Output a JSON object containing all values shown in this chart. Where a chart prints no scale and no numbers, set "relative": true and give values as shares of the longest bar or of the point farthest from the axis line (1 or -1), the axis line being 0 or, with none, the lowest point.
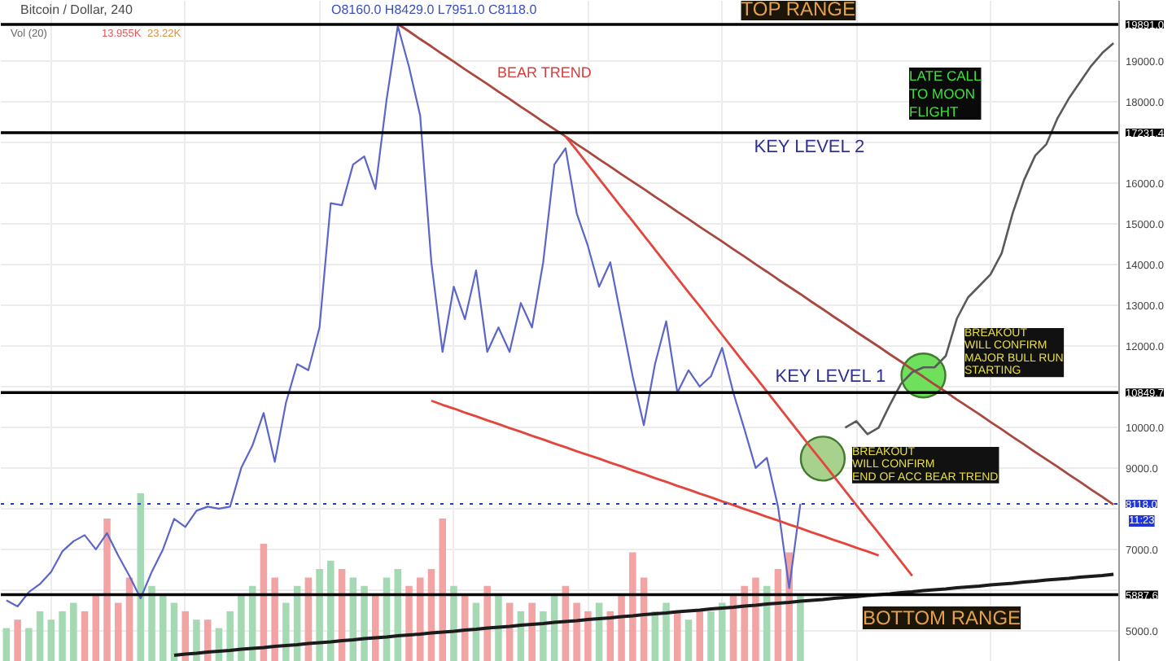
{
  "chart_data": [
    {
      "type": "line",
      "title": "Bitcoin / Dollar, 240",
      "categories": [
        null,
        null,
        null,
        null,
        null,
        null,
        null,
        null,
        null,
        null,
        null,
        null,
        null,
        null,
        null,
        null,
        null,
        null,
        null,
        null,
        null,
        null,
        null,
        null,
        null,
        null,
        null,
        null,
        null,
        null,
        null,
        null,
        null,
        null,
        null,
        null,
        null,
        null,
        null,
        null,
        null,
        null,
        null,
        null,
        null,
        null,
        null,
        null,
        null,
        null,
        null,
        null,
        null,
        null,
        null,
        null,
        null,
        null,
        null,
        null,
        null,
        null,
        null,
        null,
        null,
        null,
        null,
        null,
        null,
        null,
        null,
        null,
        null,
        null,
        null,
        null,
        null,
        null,
        null,
        null,
        null,
        null,
        null,
        null,
        null,
        null,
        null,
        null,
        null,
        null,
        null,
        null,
        null,
        null,
        null,
        null,
        null,
        null,
        null,
        null
      ],
      "series": [
        {
          "color": "#5b66c8",
          "values": [
            5750,
            5600,
            5950,
            6150,
            6450,
            6950,
            7200,
            7350,
            7000,
            7400,
            6850,
            6350,
            5800,
            6450,
            7000,
            7750,
            7550,
            7950,
            8050,
            8000,
            8050,
            9000,
            9550,
            10350,
            9150,
            10600,
            11550,
            11400,
            12450,
            15500,
            15450,
            16450,
            16650,
            15850,
            18050,
            19850,
            18850,
            17650,
            14050,
            11850,
            13450,
            12650,
            13850,
            11850,
            12450,
            11850,
            13050,
            12450,
            14050,
            16450,
            16850,
            15250,
            14450,
            13450,
            14050,
            12650,
            11250,
            10050,
            11550,
            12600,
            10850,
            11400,
            11000,
            11250,
            11950,
            10850,
            9950,
            9000,
            9250,
            8050,
            6050,
            8120,
            null,
            null,
            null,
            null,
            null,
            null,
            null,
            null,
            null,
            null,
            null,
            null,
            null,
            null,
            null,
            null,
            null,
            null,
            null,
            null,
            null,
            null,
            null,
            null,
            null,
            null,
            null,
            null
          ]
        },
        {
          "type": "line",
          "color": "#a8483f",
          "values": [
            null,
            null,
            null,
            null,
            null,
            null,
            null,
            null,
            null,
            null,
            null,
            null,
            null,
            null,
            null,
            null,
            null,
            null,
            null,
            null,
            null,
            null,
            null,
            null,
            null,
            null,
            null,
            null,
            null,
            null,
            null,
            null,
            null,
            null,
            null,
            19900,
            19720,
            19530,
            19350,
            19160,
            18980,
            18790,
            18610,
            18430,
            18240,
            18060,
            17870,
            17690,
            17500,
            17320,
            17140,
            16950,
            16770,
            16580,
            16400,
            16210,
            16030,
            15850,
            15660,
            15480,
            15290,
            15110,
            14920,
            14740,
            14560,
            14370,
            14190,
            14000,
            13820,
            13630,
            13450,
            13270,
            13080,
            12900,
            12710,
            12530,
            12340,
            12160,
            11980,
            11790,
            11610,
            11420,
            11240,
            11050,
            10870,
            10680,
            10500,
            10320,
            10130,
            9950,
            9760,
            9580,
            9390,
            9210,
            9030,
            8840,
            8660,
            8470,
            8290,
            8100
          ]
        },
        {
          "type": "line",
          "color": "#e2463c",
          "values": [
            null,
            null,
            null,
            null,
            null,
            null,
            null,
            null,
            null,
            null,
            null,
            null,
            null,
            null,
            null,
            null,
            null,
            null,
            null,
            null,
            null,
            null,
            null,
            null,
            null,
            null,
            null,
            null,
            null,
            null,
            null,
            null,
            null,
            null,
            null,
            null,
            null,
            null,
            null,
            null,
            null,
            null,
            null,
            null,
            null,
            null,
            null,
            null,
            null,
            null,
            17140,
            16800,
            16450,
            16100,
            15750,
            15400,
            15060,
            14710,
            14360,
            14010,
            13660,
            13310,
            12970,
            12620,
            12270,
            11920,
            11570,
            11230,
            10880,
            10530,
            10180,
            9830,
            9480,
            9140,
            8790,
            8440,
            8090,
            7740,
            7400,
            7050,
            6700,
            6350,
            null,
            null,
            null,
            null,
            null,
            null,
            null,
            null,
            null,
            null,
            null,
            null,
            null,
            null,
            null,
            null,
            null,
            null
          ]
        },
        {
          "type": "line",
          "color": "#e2463c",
          "values": [
            null,
            null,
            null,
            null,
            null,
            null,
            null,
            null,
            null,
            null,
            null,
            null,
            null,
            null,
            null,
            null,
            null,
            null,
            null,
            null,
            null,
            null,
            null,
            null,
            null,
            null,
            null,
            null,
            null,
            null,
            null,
            null,
            null,
            null,
            null,
            null,
            null,
            null,
            10650,
            10550,
            10460,
            10360,
            10270,
            10170,
            10080,
            9980,
            9890,
            9790,
            9700,
            9600,
            9510,
            9410,
            9320,
            9230,
            9130,
            9040,
            8940,
            8850,
            8750,
            8660,
            8560,
            8470,
            8370,
            8280,
            8180,
            8090,
            7990,
            7900,
            7800,
            7710,
            7610,
            7520,
            7420,
            7330,
            7230,
            7140,
            7040,
            6950,
            6850,
            null,
            null,
            null,
            null,
            null,
            null,
            null,
            null,
            null,
            null,
            null,
            null,
            null,
            null,
            null,
            null,
            null,
            null,
            null,
            null,
            null
          ]
        },
        {
          "type": "line",
          "color": "#1b1b1b",
          "values": [
            null,
            null,
            null,
            null,
            null,
            null,
            null,
            null,
            null,
            null,
            null,
            null,
            null,
            null,
            null,
            4400,
            4430,
            4450,
            4480,
            4500,
            4520,
            4550,
            4570,
            4590,
            4620,
            4640,
            4660,
            4690,
            4710,
            4730,
            4760,
            4780,
            4810,
            4830,
            4850,
            4880,
            4900,
            4920,
            4950,
            4970,
            4990,
            5020,
            5040,
            5070,
            5090,
            5110,
            5140,
            5160,
            5180,
            5210,
            5230,
            5250,
            5280,
            5300,
            5320,
            5350,
            5370,
            5400,
            5420,
            5440,
            5470,
            5490,
            5510,
            5540,
            5560,
            5580,
            5610,
            5630,
            5660,
            5680,
            5700,
            5730,
            5750,
            5770,
            5800,
            5820,
            5840,
            5870,
            5890,
            5910,
            5940,
            5960,
            5990,
            6010,
            6030,
            6060,
            6080,
            6100,
            6130,
            6150,
            6170,
            6200,
            6220,
            6250,
            6270,
            6290,
            6320,
            6340,
            6360,
            6390
          ]
        },
        {
          "type": "line",
          "color": "#5a5a5a",
          "values": [
            null,
            null,
            null,
            null,
            null,
            null,
            null,
            null,
            null,
            null,
            null,
            null,
            null,
            null,
            null,
            null,
            null,
            null,
            null,
            null,
            null,
            null,
            null,
            null,
            null,
            null,
            null,
            null,
            null,
            null,
            null,
            null,
            null,
            null,
            null,
            null,
            null,
            null,
            null,
            null,
            null,
            null,
            null,
            null,
            null,
            null,
            null,
            null,
            null,
            null,
            null,
            null,
            null,
            null,
            null,
            null,
            null,
            null,
            null,
            null,
            null,
            null,
            null,
            null,
            null,
            null,
            null,
            null,
            null,
            null,
            null,
            null,
            null,
            null,
            null,
            9990,
            10150,
            9830,
            9990,
            10550,
            11070,
            11350,
            11470,
            11470,
            11750,
            12670,
            13190,
            13470,
            13750,
            14270,
            15270,
            16070,
            16670,
            16950,
            17590,
            18070,
            18470,
            18870,
            19190,
            19430
          ]
        },
        {
          "type": "scatter",
          "marker": "circle",
          "color": "#a9d18e",
          "values": [
            null,
            null,
            null,
            null,
            null,
            null,
            null,
            null,
            null,
            null,
            null,
            null,
            null,
            null,
            null,
            null,
            null,
            null,
            null,
            null,
            null,
            null,
            null,
            null,
            null,
            null,
            null,
            null,
            null,
            null,
            null,
            null,
            null,
            null,
            null,
            null,
            null,
            null,
            null,
            null,
            null,
            null,
            null,
            null,
            null,
            null,
            null,
            null,
            null,
            null,
            null,
            null,
            null,
            null,
            null,
            null,
            null,
            null,
            null,
            null,
            null,
            null,
            null,
            null,
            null,
            null,
            null,
            null,
            null,
            null,
            null,
            null,
            null,
            9230,
            null,
            null,
            null,
            null,
            null,
            null,
            null,
            null,
            null,
            null,
            null,
            null,
            null,
            null,
            null,
            null,
            null,
            null,
            null,
            null,
            null,
            null,
            null,
            null,
            null,
            null
          ]
        },
        {
          "type": "scatter",
          "marker": "circle",
          "color": "#6fe05c",
          "values": [
            null,
            null,
            null,
            null,
            null,
            null,
            null,
            null,
            null,
            null,
            null,
            null,
            null,
            null,
            null,
            null,
            null,
            null,
            null,
            null,
            null,
            null,
            null,
            null,
            null,
            null,
            null,
            null,
            null,
            null,
            null,
            null,
            null,
            null,
            null,
            null,
            null,
            null,
            null,
            null,
            null,
            null,
            null,
            null,
            null,
            null,
            null,
            null,
            null,
            null,
            null,
            null,
            null,
            null,
            null,
            null,
            null,
            null,
            null,
            null,
            null,
            null,
            null,
            null,
            null,
            null,
            null,
            null,
            null,
            null,
            null,
            null,
            null,
            null,
            null,
            null,
            null,
            null,
            null,
            null,
            null,
            null,
            11270,
            null,
            null,
            null,
            null,
            null,
            null,
            null,
            null,
            null,
            null,
            null,
            null,
            null,
            null,
            null,
            null,
            null
          ]
        }
      ],
      "ylim": [
        4240,
        20470
      ],
      "yticks": [
        {
          "value": 5000,
          "label": "5000.0"
        },
        {
          "value": 6000,
          "label": null
        },
        {
          "value": 7000,
          "label": "7000.0"
        },
        {
          "value": 8000,
          "label": null
        },
        {
          "value": 9000,
          "label": "9000.0"
        },
        {
          "value": 10000,
          "label": "10000.0"
        },
        {
          "value": 11000,
          "label": null
        },
        {
          "value": 12000,
          "label": "12000.0"
        },
        {
          "value": 13000,
          "label": "13000.0"
        },
        {
          "value": 14000,
          "label": "14000.0"
        },
        {
          "value": 15000,
          "label": "15000.0"
        },
        {
          "value": 16000,
          "label": "16000.0"
        },
        {
          "value": 17000,
          "label": null
        },
        {
          "value": 18000,
          "label": "18000.0"
        },
        {
          "value": 19000,
          "label": "19000.0"
        }
      ],
      "tick_labels": "y",
      "grid": true,
      "ref_lines": [
        {
          "axis": "y",
          "value": 19891.0,
          "label": "19891.0",
          "color": "#000000"
        },
        {
          "axis": "y",
          "value": 17231.4,
          "label": "17231.4",
          "color": "#000000"
        },
        {
          "axis": "y",
          "value": 10849.7,
          "label": "10849.7",
          "color": "#000000"
        },
        {
          "axis": "y",
          "value": 5887.6,
          "label": "5887.6",
          "color": "#000000"
        },
        {
          "axis": "y",
          "value": 8118.0,
          "label": "8118.0",
          "color": "#2238d6",
          "line_style": "dotted"
        }
      ],
      "annotations": [
        "O8160.0 H8429.0 L7951.0 C8118.0",
        "BEAR TREND",
        "LATE CALL\nTO MOON\nFLIGHT",
        "BREAKOUT\nWILL CONFIRM\nMAJOR BULL RUN\nSTARTING",
        "BREAKOUT\nWILL CONFIRM\nEND OF ACC BEAR TREND",
        "11:23",
        "TOP RANGE",
        "KEY LEVEL 2",
        "KEY LEVEL 1",
        "BOTTOM RANGE"
      ]
    },
    {
      "type": "bar",
      "title": "Vol (20)",
      "relative": true,
      "categories": [
        null,
        null,
        null,
        null,
        null,
        null,
        null,
        null,
        null,
        null,
        null,
        null,
        null,
        null,
        null,
        null,
        null,
        null,
        null,
        null,
        null,
        null,
        null,
        null,
        null,
        null,
        null,
        null,
        null,
        null,
        null,
        null,
        null,
        null,
        null,
        null,
        null,
        null,
        null,
        null,
        null,
        null,
        null,
        null,
        null,
        null,
        null,
        null,
        null,
        null,
        null,
        null,
        null,
        null,
        null,
        null,
        null,
        null,
        null,
        null,
        null,
        null,
        null,
        null,
        null,
        null,
        null,
        null,
        null,
        null,
        null,
        null,
        null,
        null,
        null,
        null,
        null,
        null,
        null,
        null,
        null,
        null,
        null,
        null,
        null,
        null,
        null,
        null,
        null,
        null,
        null,
        null,
        null,
        null,
        null,
        null,
        null,
        null,
        null,
        null
      ],
      "values": [
        0.2,
        0.25,
        0.2,
        0.3,
        0.25,
        0.3,
        0.35,
        0.3,
        0.4,
        0.85,
        0.35,
        0.5,
        1,
        0.45,
        0.4,
        0.35,
        0.3,
        0.25,
        0.25,
        0.2,
        0.3,
        0.4,
        0.45,
        0.7,
        0.5,
        0.35,
        0.45,
        0.5,
        0.55,
        0.6,
        0.55,
        0.5,
        0.45,
        0.4,
        0.5,
        0.55,
        0.45,
        0.5,
        0.55,
        0.85,
        0.45,
        0.4,
        0.35,
        0.45,
        0.4,
        0.35,
        0.3,
        0.35,
        0.3,
        0.4,
        0.45,
        0.35,
        0.3,
        0.35,
        0.3,
        0.4,
        0.65,
        0.5,
        0.3,
        0.35,
        0.3,
        0.25,
        0.3,
        0.3,
        0.35,
        0.4,
        0.45,
        0.5,
        0.45,
        0.55,
        0.65,
        0.4,
        null,
        null,
        null,
        null,
        null,
        null,
        null,
        null,
        null,
        null,
        null,
        null,
        null,
        null,
        null,
        null,
        null,
        null,
        null,
        null,
        null,
        null,
        null,
        null,
        null,
        null,
        null,
        null
      ],
      "colors": [
        "#a5d9b3",
        "#f2a3a3",
        "#a5d9b3",
        "#a5d9b3",
        "#a5d9b3",
        "#a5d9b3",
        "#a5d9b3",
        "#f2a3a3",
        "#f2a3a3",
        "#f2a3a3",
        "#f2a3a3",
        "#f2a3a3",
        "#a5d9b3",
        "#a5d9b3",
        "#a5d9b3",
        "#a5d9b3",
        "#f2a3a3",
        "#a5d9b3",
        "#f2a3a3",
        "#a5d9b3",
        "#a5d9b3",
        "#a5d9b3",
        "#a5d9b3",
        "#f2a3a3",
        "#f2a3a3",
        "#a5d9b3",
        "#a5d9b3",
        "#f2a3a3",
        "#a5d9b3",
        "#a5d9b3",
        "#f2a3a3",
        "#a5d9b3",
        "#a5d9b3",
        "#f2a3a3",
        "#a5d9b3",
        "#a5d9b3",
        "#f2a3a3",
        "#f2a3a3",
        "#f2a3a3",
        "#f2a3a3",
        "#a5d9b3",
        "#f2a3a3",
        "#a5d9b3",
        "#f2a3a3",
        "#a5d9b3",
        "#f2a3a3",
        "#a5d9b3",
        "#f2a3a3",
        "#a5d9b3",
        "#a5d9b3",
        "#f2a3a3",
        "#f2a3a3",
        "#f2a3a3",
        "#a5d9b3",
        "#f2a3a3",
        "#f2a3a3",
        "#f2a3a3",
        "#f2a3a3",
        "#a5d9b3",
        "#a5d9b3",
        "#f2a3a3",
        "#a5d9b3",
        "#f2a3a3",
        "#a5d9b3",
        "#a5d9b3",
        "#f2a3a3",
        "#f2a3a3",
        "#f2a3a3",
        "#a5d9b3",
        "#f2a3a3",
        "#f2a3a3",
        "#a5d9b3",
        null,
        null,
        null,
        null,
        null,
        null,
        null,
        null,
        null,
        null,
        null,
        null,
        null,
        null,
        null,
        null,
        null,
        null,
        null,
        null,
        null,
        null,
        null,
        null,
        null,
        null,
        null,
        null
      ],
      "annotations": [
        "13.955K",
        "23.22K"
      ]
    }
  ]
}
